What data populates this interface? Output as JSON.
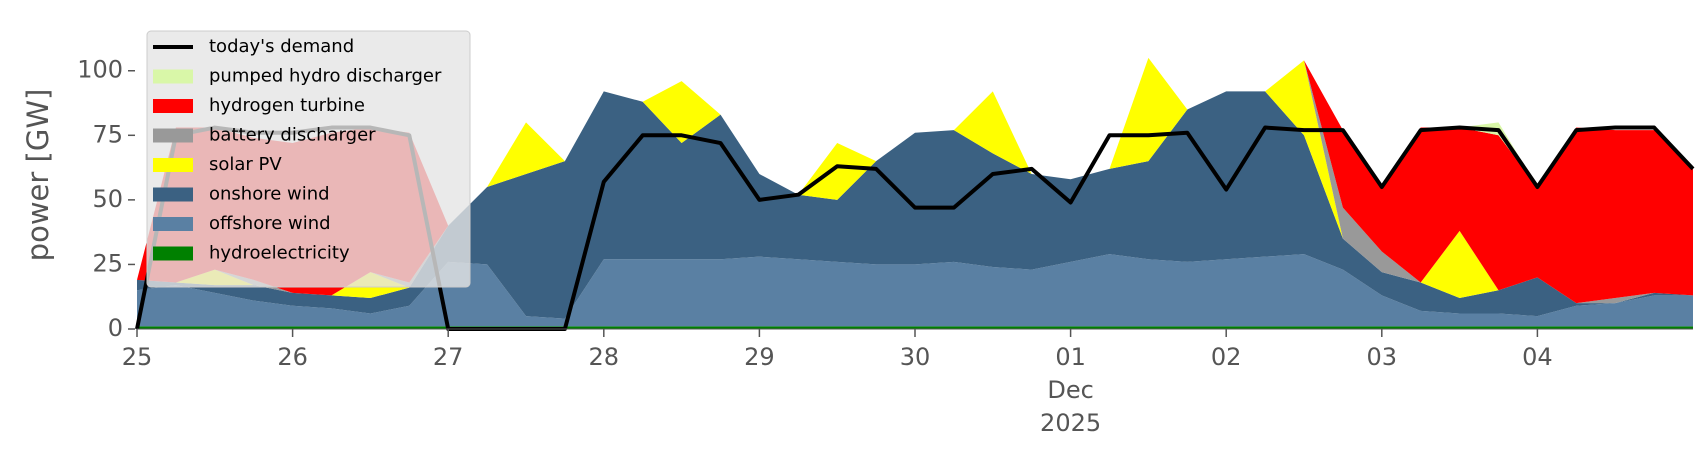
{
  "chart_data": {
    "type": "stacked_area",
    "ylabel": "power [GW]",
    "x": [
      "2025-11-25 00:00",
      "2025-11-25 06:00",
      "2025-11-25 12:00",
      "2025-11-25 18:00",
      "2025-11-26 00:00",
      "2025-11-26 06:00",
      "2025-11-26 12:00",
      "2025-11-26 18:00",
      "2025-11-27 00:00",
      "2025-11-27 06:00",
      "2025-11-27 12:00",
      "2025-11-27 18:00",
      "2025-11-28 00:00",
      "2025-11-28 06:00",
      "2025-11-28 12:00",
      "2025-11-28 18:00",
      "2025-11-29 00:00",
      "2025-11-29 06:00",
      "2025-11-29 12:00",
      "2025-11-29 18:00",
      "2025-11-30 00:00",
      "2025-11-30 06:00",
      "2025-11-30 12:00",
      "2025-11-30 18:00",
      "2025-12-01 00:00",
      "2025-12-01 06:00",
      "2025-12-01 12:00",
      "2025-12-01 18:00",
      "2025-12-02 00:00",
      "2025-12-02 06:00",
      "2025-12-02 12:00",
      "2025-12-02 18:00",
      "2025-12-03 00:00",
      "2025-12-03 06:00",
      "2025-12-03 12:00",
      "2025-12-03 18:00",
      "2025-12-04 00:00",
      "2025-12-04 06:00",
      "2025-12-04 12:00",
      "2025-12-04 18:00",
      "2025-12-05 00:00"
    ],
    "series": [
      {
        "name": "hydroelectricity",
        "color": "#008000",
        "values": [
          1,
          1,
          1,
          1,
          1,
          1,
          1,
          1,
          1,
          1,
          1,
          1,
          1,
          1,
          1,
          1,
          1,
          1,
          1,
          1,
          1,
          1,
          1,
          1,
          1,
          1,
          1,
          1,
          1,
          1,
          1,
          1,
          1,
          1,
          1,
          1,
          1,
          1,
          1,
          1,
          1
        ]
      },
      {
        "name": "offshore wind",
        "color": "#5a80a3",
        "values": [
          14,
          16,
          13,
          10,
          8,
          7,
          5,
          8,
          25,
          24,
          4,
          3,
          26,
          26,
          26,
          26,
          27,
          26,
          25,
          24,
          24,
          25,
          23,
          22,
          25,
          28,
          26,
          25,
          26,
          27,
          28,
          22,
          12,
          6,
          5,
          5,
          4,
          8,
          9,
          12,
          12
        ]
      },
      {
        "name": "onshore wind",
        "color": "#3b6182",
        "values": [
          4,
          1,
          3,
          6,
          5,
          5,
          6,
          7,
          14,
          30,
          55,
          61,
          65,
          61,
          45,
          56,
          32,
          25,
          24,
          40,
          51,
          51,
          44,
          37,
          32,
          33,
          38,
          59,
          65,
          64,
          46,
          12,
          9,
          11,
          6,
          9,
          15,
          1,
          0,
          1,
          0
        ]
      },
      {
        "name": "solar PV",
        "color": "#ffff00",
        "values": [
          0,
          0,
          6,
          0,
          0,
          0,
          10,
          0,
          0,
          0,
          20,
          0,
          0,
          0,
          24,
          0,
          0,
          0,
          22,
          0,
          0,
          0,
          24,
          0,
          0,
          0,
          40,
          0,
          0,
          0,
          29,
          0,
          0,
          0,
          26,
          0,
          0,
          0,
          0,
          0,
          0
        ]
      },
      {
        "name": "battery discharger",
        "color": "#999999",
        "values": [
          0,
          0,
          0,
          2,
          0,
          0,
          0,
          2,
          0,
          0,
          0,
          0,
          0,
          0,
          0,
          0,
          0,
          0,
          0,
          0,
          0,
          0,
          0,
          0,
          0,
          0,
          0,
          0,
          0,
          0,
          0,
          12,
          8,
          0,
          0,
          0,
          0,
          0,
          2,
          0,
          0
        ]
      },
      {
        "name": "hydrogen turbine",
        "color": "#ff0000",
        "values": [
          0,
          60,
          55,
          55,
          58,
          63,
          56,
          58,
          0,
          0,
          0,
          0,
          0,
          0,
          0,
          0,
          0,
          0,
          0,
          0,
          0,
          0,
          0,
          0,
          0,
          0,
          0,
          0,
          0,
          0,
          0,
          30,
          25,
          60,
          40,
          60,
          35,
          68,
          65,
          63,
          50
        ]
      },
      {
        "name": "pumped hydro discharger",
        "color": "#d9f7a8",
        "values": [
          0,
          0,
          0,
          0,
          0,
          0,
          0,
          0,
          0,
          0,
          0,
          0,
          0,
          0,
          0,
          0,
          0,
          0,
          0,
          0,
          0,
          0,
          0,
          0,
          0,
          0,
          0,
          0,
          0,
          0,
          0,
          0,
          0,
          0,
          0,
          5,
          0,
          0,
          0,
          0,
          0
        ]
      }
    ],
    "line": {
      "name": "today's demand",
      "color": "#000000",
      "values": [
        0,
        75,
        78,
        76,
        76,
        78,
        78,
        75,
        0,
        0,
        0,
        0,
        57,
        75,
        75,
        72,
        50,
        52,
        63,
        62,
        47,
        47,
        60,
        62,
        49,
        75,
        75,
        76,
        54,
        78,
        77,
        77,
        55,
        77,
        78,
        77,
        55,
        77,
        78,
        78,
        62
      ]
    },
    "xlim": [
      "2025-11-25 00:00",
      "2025-12-05 00:00"
    ],
    "xticks": [
      {
        "value": "2025-11-25 00:00",
        "label": "25"
      },
      {
        "value": "2025-11-26 00:00",
        "label": "26"
      },
      {
        "value": "2025-11-27 00:00",
        "label": "27"
      },
      {
        "value": "2025-11-28 00:00",
        "label": "28"
      },
      {
        "value": "2025-11-29 00:00",
        "label": "29"
      },
      {
        "value": "2025-11-30 00:00",
        "label": "30"
      },
      {
        "value": "2025-12-01 00:00",
        "label": "01\nDec\n2025"
      },
      {
        "value": "2025-12-02 00:00",
        "label": "02"
      },
      {
        "value": "2025-12-03 00:00",
        "label": "03"
      },
      {
        "value": "2025-12-04 00:00",
        "label": "04"
      }
    ],
    "ylim": [
      0,
      115
    ],
    "yticks": [
      0,
      25,
      50,
      75,
      100
    ],
    "legend": "upper left"
  }
}
